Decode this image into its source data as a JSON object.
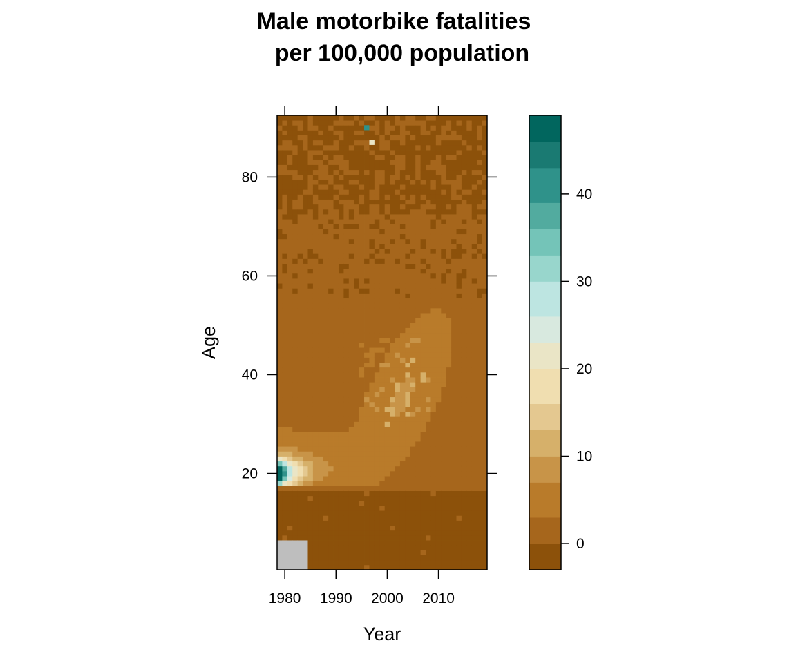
{
  "chart_data": {
    "type": "heatmap",
    "title": [
      "Male motorbike fatalities",
      "per 100,000 population"
    ],
    "xlabel": "Year",
    "ylabel": "Age",
    "x_range": [
      1978.5,
      2019.5
    ],
    "y_range": [
      0.5,
      92.5
    ],
    "x_ticks": [
      1980,
      1990,
      2000,
      2010
    ],
    "y_ticks": [
      20,
      40,
      60,
      80
    ],
    "colorbar": {
      "range": [
        -3,
        49
      ],
      "ticks": [
        0,
        10,
        20,
        30,
        40
      ],
      "breaks": [
        -3,
        0,
        3,
        7,
        10,
        13,
        16,
        20,
        23,
        26,
        30,
        33,
        36,
        39,
        43,
        46,
        49
      ],
      "colors": [
        "#8c510a",
        "#a6661c",
        "#b97b2a",
        "#c89448",
        "#d6b06a",
        "#e4c890",
        "#f0deb0",
        "#eae5c6",
        "#d8e9df",
        "#bde5e1",
        "#98d6cc",
        "#74c4b8",
        "#52ab9f",
        "#2f928a",
        "#1a7a72",
        "#01665e"
      ]
    },
    "missing_color": "#bebebe",
    "missing_region": {
      "years": [
        1979,
        1984
      ],
      "ages": [
        1,
        6
      ]
    },
    "description_values": {
      "background_low": 0,
      "young_adult_peak": {
        "year": 1979,
        "age": 20,
        "value": 47
      },
      "outliers": [
        {
          "year": 1996,
          "age": 90,
          "value": 40
        },
        {
          "year": 1997,
          "age": 87,
          "value": 20
        }
      ]
    }
  }
}
